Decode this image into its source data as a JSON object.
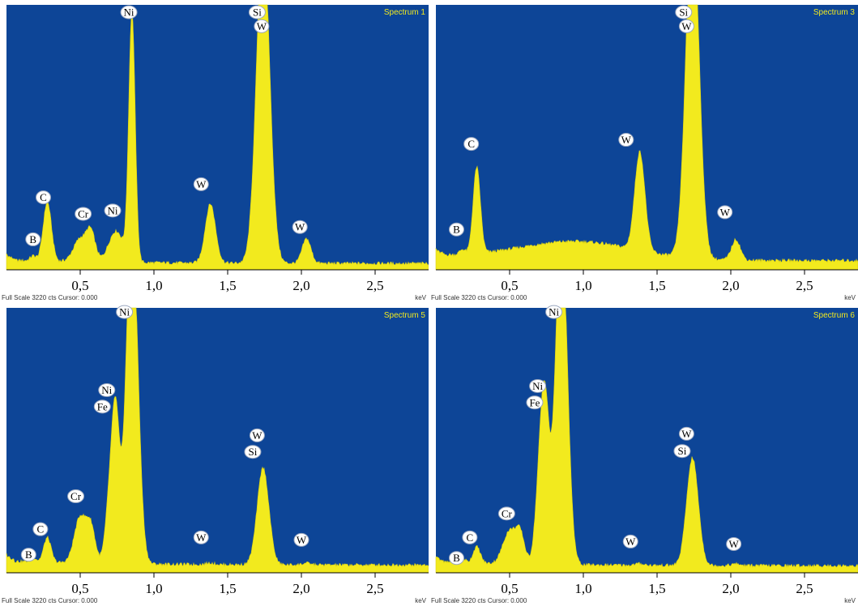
{
  "footer_text": "Full Scale 3220 cts Cursor: 0.000",
  "unit_label": "keV",
  "colors": {
    "plot_bg": "#0d4597",
    "spectrum": "#f2ea1e",
    "title": "#f2ea1e"
  },
  "chart_data": [
    {
      "type": "area",
      "title": "Spectrum 1",
      "xlim": [
        0,
        2.8
      ],
      "ylim": [
        0,
        3220
      ],
      "xticks": [
        0.5,
        1.0,
        1.5,
        2.0,
        2.5
      ],
      "xtick_labels": [
        "0,5",
        "1,0",
        "1,5",
        "2,0",
        "2,5"
      ],
      "background": 90,
      "peaks": [
        {
          "x": 0.18,
          "h": 60,
          "w": 0.02
        },
        {
          "x": 0.277,
          "h": 720,
          "w": 0.028
        },
        {
          "x": 0.5,
          "h": 280,
          "w": 0.045
        },
        {
          "x": 0.573,
          "h": 340,
          "w": 0.03
        },
        {
          "x": 0.743,
          "h": 380,
          "w": 0.05
        },
        {
          "x": 0.851,
          "h": 3030,
          "w": 0.022
        },
        {
          "x": 1.383,
          "h": 720,
          "w": 0.035
        },
        {
          "x": 1.74,
          "h": 4000,
          "w": 0.045
        },
        {
          "x": 2.035,
          "h": 300,
          "w": 0.03
        }
      ],
      "labels": [
        {
          "text": "B",
          "x": 0.18,
          "y": 370
        },
        {
          "text": "C",
          "x": 0.25,
          "y": 880
        },
        {
          "text": "Cr",
          "x": 0.52,
          "y": 680
        },
        {
          "text": "Ni",
          "x": 0.72,
          "y": 720
        },
        {
          "text": "Ni",
          "x": 0.83,
          "y": 3130
        },
        {
          "text": "W",
          "x": 1.32,
          "y": 1040
        },
        {
          "text": "Si",
          "x": 1.7,
          "y": 3130
        },
        {
          "text": "W",
          "x": 1.73,
          "y": 2960
        },
        {
          "text": "W",
          "x": 1.99,
          "y": 520
        }
      ]
    },
    {
      "type": "area",
      "title": "Spectrum 3",
      "xlim": [
        0,
        2.8
      ],
      "ylim": [
        0,
        3220
      ],
      "xticks": [
        0.5,
        1.0,
        1.5,
        2.0,
        2.5
      ],
      "xtick_labels": [
        "0,5",
        "1,0",
        "1,5",
        "2,0",
        "2,5"
      ],
      "background": 130,
      "hump": {
        "x": 0.95,
        "h": 220,
        "w": 0.55
      },
      "peaks": [
        {
          "x": 0.18,
          "h": 60,
          "w": 0.02
        },
        {
          "x": 0.277,
          "h": 1050,
          "w": 0.025
        },
        {
          "x": 1.383,
          "h": 1200,
          "w": 0.035
        },
        {
          "x": 1.74,
          "h": 4200,
          "w": 0.045
        },
        {
          "x": 2.035,
          "h": 250,
          "w": 0.03
        }
      ],
      "labels": [
        {
          "text": "B",
          "x": 0.14,
          "y": 490
        },
        {
          "text": "C",
          "x": 0.24,
          "y": 1530
        },
        {
          "text": "W",
          "x": 1.29,
          "y": 1580
        },
        {
          "text": "Si",
          "x": 1.68,
          "y": 3130
        },
        {
          "text": "W",
          "x": 1.7,
          "y": 2960
        },
        {
          "text": "W",
          "x": 1.96,
          "y": 700
        }
      ]
    },
    {
      "type": "area",
      "title": "Spectrum 5",
      "xlim": [
        0,
        2.8
      ],
      "ylim": [
        0,
        3220
      ],
      "xticks": [
        0.5,
        1.0,
        1.5,
        2.0,
        2.5
      ],
      "xtick_labels": [
        "0,5",
        "1,0",
        "1,5",
        "2,0",
        "2,5"
      ],
      "background": 110,
      "peaks": [
        {
          "x": 0.18,
          "h": 60,
          "w": 0.02
        },
        {
          "x": 0.277,
          "h": 300,
          "w": 0.025
        },
        {
          "x": 0.5,
          "h": 560,
          "w": 0.04
        },
        {
          "x": 0.573,
          "h": 420,
          "w": 0.03
        },
        {
          "x": 0.705,
          "h": 900,
          "w": 0.03
        },
        {
          "x": 0.743,
          "h": 1500,
          "w": 0.025
        },
        {
          "x": 0.851,
          "h": 4200,
          "w": 0.04
        },
        {
          "x": 1.383,
          "h": 20,
          "w": 0.03
        },
        {
          "x": 1.74,
          "h": 1180,
          "w": 0.04
        },
        {
          "x": 2.035,
          "h": 20,
          "w": 0.03
        }
      ],
      "labels": [
        {
          "text": "B",
          "x": 0.15,
          "y": 220
        },
        {
          "text": "C",
          "x": 0.23,
          "y": 530
        },
        {
          "text": "Cr",
          "x": 0.47,
          "y": 930
        },
        {
          "text": "Fe",
          "x": 0.65,
          "y": 2020
        },
        {
          "text": "Ni",
          "x": 0.68,
          "y": 2220
        },
        {
          "text": "Ni",
          "x": 0.8,
          "y": 3170
        },
        {
          "text": "W",
          "x": 1.32,
          "y": 430
        },
        {
          "text": "Si",
          "x": 1.67,
          "y": 1470
        },
        {
          "text": "W",
          "x": 1.7,
          "y": 1670
        },
        {
          "text": "W",
          "x": 2.0,
          "y": 400
        }
      ]
    },
    {
      "type": "area",
      "title": "Spectrum 6",
      "xlim": [
        0,
        2.8
      ],
      "ylim": [
        0,
        3220
      ],
      "xticks": [
        0.5,
        1.0,
        1.5,
        2.0,
        2.5
      ],
      "xtick_labels": [
        "0,5",
        "1,0",
        "1,5",
        "2,0",
        "2,5"
      ],
      "background": 100,
      "peaks": [
        {
          "x": 0.18,
          "h": 60,
          "w": 0.02
        },
        {
          "x": 0.277,
          "h": 200,
          "w": 0.025
        },
        {
          "x": 0.5,
          "h": 400,
          "w": 0.045
        },
        {
          "x": 0.573,
          "h": 330,
          "w": 0.03
        },
        {
          "x": 0.705,
          "h": 1000,
          "w": 0.03
        },
        {
          "x": 0.743,
          "h": 1650,
          "w": 0.028
        },
        {
          "x": 0.851,
          "h": 4200,
          "w": 0.04
        },
        {
          "x": 1.383,
          "h": 20,
          "w": 0.03
        },
        {
          "x": 1.74,
          "h": 1310,
          "w": 0.04
        },
        {
          "x": 2.035,
          "h": 20,
          "w": 0.03
        }
      ],
      "labels": [
        {
          "text": "B",
          "x": 0.14,
          "y": 180
        },
        {
          "text": "C",
          "x": 0.23,
          "y": 430
        },
        {
          "text": "Cr",
          "x": 0.48,
          "y": 720
        },
        {
          "text": "Fe",
          "x": 0.67,
          "y": 2070
        },
        {
          "text": "Ni",
          "x": 0.69,
          "y": 2270
        },
        {
          "text": "Ni",
          "x": 0.8,
          "y": 3170
        },
        {
          "text": "W",
          "x": 1.32,
          "y": 380
        },
        {
          "text": "Si",
          "x": 1.67,
          "y": 1480
        },
        {
          "text": "W",
          "x": 1.7,
          "y": 1690
        },
        {
          "text": "W",
          "x": 2.02,
          "y": 350
        }
      ]
    }
  ]
}
